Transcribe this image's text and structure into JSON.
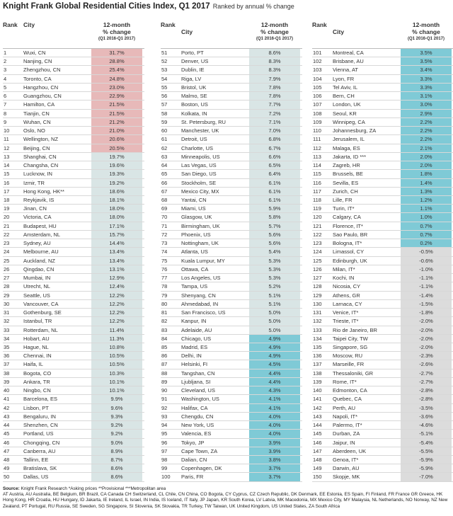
{
  "title": "Knight Frank Global Residential Cities Index, Q1 2017",
  "subtitle": "Ranked by annual % change",
  "headers": {
    "rank": "Rank",
    "city": "City",
    "change_line1": "12-month",
    "change_line2": "% change",
    "period": "(Q1 2016-Q1 2017)"
  },
  "colors": {
    "positive_high": "#e7b9b9",
    "positive_mid": "#d9e5e5",
    "positive_low": "#7fcad6",
    "negative": "#dcdcdc"
  },
  "chart_data": {
    "type": "table",
    "title": "Knight Frank Global Residential Cities Index, Q1 2017",
    "subtitle": "Ranked by annual % change",
    "columns": [
      "Rank",
      "City",
      "12-month % change (Q1 2016-Q1 2017)"
    ],
    "rows": [
      {
        "rank": 1,
        "city": "Wuxi, CN",
        "value": "31.7%",
        "tier": "high"
      },
      {
        "rank": 2,
        "city": "Nanjing, CN",
        "value": "28.8%",
        "tier": "high"
      },
      {
        "rank": 3,
        "city": "Zhengzhou, CN",
        "value": "25.4%",
        "tier": "high"
      },
      {
        "rank": 4,
        "city": "Toronto, CA",
        "value": "24.8%",
        "tier": "high"
      },
      {
        "rank": 5,
        "city": "Hangzhou, CN",
        "value": "23.0%",
        "tier": "high"
      },
      {
        "rank": 6,
        "city": "Guangzhou, CN",
        "value": "22.9%",
        "tier": "high"
      },
      {
        "rank": 7,
        "city": "Hamilton, CA",
        "value": "21.5%",
        "tier": "high"
      },
      {
        "rank": 8,
        "city": "Tianjin, CN",
        "value": "21.5%",
        "tier": "high"
      },
      {
        "rank": 9,
        "city": "Wuhan, CN",
        "value": "21.2%",
        "tier": "high"
      },
      {
        "rank": 10,
        "city": "Oslo, NO",
        "value": "21.0%",
        "tier": "high"
      },
      {
        "rank": 11,
        "city": "Wellington, NZ",
        "value": "20.6%",
        "tier": "high"
      },
      {
        "rank": 12,
        "city": "Beijing, CN",
        "value": "20.5%",
        "tier": "high"
      },
      {
        "rank": 13,
        "city": "Shanghai, CN",
        "value": "19.7%",
        "tier": "mid"
      },
      {
        "rank": 14,
        "city": "Changsha, CN",
        "value": "19.6%",
        "tier": "mid"
      },
      {
        "rank": 15,
        "city": "Lucknow, IN",
        "value": "19.3%",
        "tier": "mid"
      },
      {
        "rank": 16,
        "city": "Izmir, TR",
        "value": "19.2%",
        "tier": "mid"
      },
      {
        "rank": 17,
        "city": "Hong Kong, HK**",
        "value": "18.6%",
        "tier": "mid"
      },
      {
        "rank": 18,
        "city": "Reykjavik, IS",
        "value": "18.1%",
        "tier": "mid"
      },
      {
        "rank": 19,
        "city": "Jinan, CN",
        "value": "18.0%",
        "tier": "mid"
      },
      {
        "rank": 20,
        "city": "Victoria, CA",
        "value": "18.0%",
        "tier": "mid"
      },
      {
        "rank": 21,
        "city": "Budapest, HU",
        "value": "17.1%",
        "tier": "mid"
      },
      {
        "rank": 22,
        "city": "Amsterdam, NL",
        "value": "15.7%",
        "tier": "mid"
      },
      {
        "rank": 23,
        "city": "Sydney, AU",
        "value": "14.4%",
        "tier": "mid"
      },
      {
        "rank": 24,
        "city": "Melbourne, AU",
        "value": "13.4%",
        "tier": "mid"
      },
      {
        "rank": 25,
        "city": "Auckland, NZ",
        "value": "13.4%",
        "tier": "mid"
      },
      {
        "rank": 26,
        "city": "Qingdao, CN",
        "value": "13.1%",
        "tier": "mid"
      },
      {
        "rank": 27,
        "city": "Mumbai, IN",
        "value": "12.9%",
        "tier": "mid"
      },
      {
        "rank": 28,
        "city": "Utrecht, NL",
        "value": "12.4%",
        "tier": "mid"
      },
      {
        "rank": 29,
        "city": "Seattle, US",
        "value": "12.2%",
        "tier": "mid"
      },
      {
        "rank": 30,
        "city": "Vancouver, CA",
        "value": "12.2%",
        "tier": "mid"
      },
      {
        "rank": 31,
        "city": "Gothenburg, SE",
        "value": "12.2%",
        "tier": "mid"
      },
      {
        "rank": 32,
        "city": "Istanbul, TR",
        "value": "12.2%",
        "tier": "mid"
      },
      {
        "rank": 33,
        "city": "Rotterdam, NL",
        "value": "11.4%",
        "tier": "mid"
      },
      {
        "rank": 34,
        "city": "Hobart, AU",
        "value": "11.3%",
        "tier": "mid"
      },
      {
        "rank": 35,
        "city": "Hague, NL",
        "value": "10.8%",
        "tier": "mid"
      },
      {
        "rank": 36,
        "city": "Chennai, IN",
        "value": "10.5%",
        "tier": "mid"
      },
      {
        "rank": 37,
        "city": "Haifa, IL",
        "value": "10.5%",
        "tier": "mid"
      },
      {
        "rank": 38,
        "city": "Bogota, CO",
        "value": "10.3%",
        "tier": "mid"
      },
      {
        "rank": 39,
        "city": "Ankara, TR",
        "value": "10.1%",
        "tier": "mid"
      },
      {
        "rank": 40,
        "city": "Ningbo, CN",
        "value": "10.1%",
        "tier": "mid"
      },
      {
        "rank": 41,
        "city": "Barcelona, ES",
        "value": "9.9%",
        "tier": "mid"
      },
      {
        "rank": 42,
        "city": "Lisbon, PT",
        "value": "9.6%",
        "tier": "mid"
      },
      {
        "rank": 43,
        "city": "Bengaluru, IN",
        "value": "9.3%",
        "tier": "mid"
      },
      {
        "rank": 44,
        "city": "Shenzhen, CN",
        "value": "9.2%",
        "tier": "mid"
      },
      {
        "rank": 45,
        "city": "Portland, US",
        "value": "9.2%",
        "tier": "mid"
      },
      {
        "rank": 46,
        "city": "Chongqing, CN",
        "value": "9.0%",
        "tier": "mid"
      },
      {
        "rank": 47,
        "city": "Canberra, AU",
        "value": "8.9%",
        "tier": "mid"
      },
      {
        "rank": 48,
        "city": "Tallinn, EE",
        "value": "8.7%",
        "tier": "mid"
      },
      {
        "rank": 49,
        "city": "Bratislava, SK",
        "value": "8.6%",
        "tier": "mid"
      },
      {
        "rank": 50,
        "city": "Dallas, US",
        "value": "8.6%",
        "tier": "mid"
      },
      {
        "rank": 51,
        "city": "Porto, PT",
        "value": "8.6%",
        "tier": "mid"
      },
      {
        "rank": 52,
        "city": "Denver, US",
        "value": "8.3%",
        "tier": "mid"
      },
      {
        "rank": 53,
        "city": "Dublin, IE",
        "value": "8.3%",
        "tier": "mid"
      },
      {
        "rank": 54,
        "city": "Riga, LV",
        "value": "7.9%",
        "tier": "mid"
      },
      {
        "rank": 55,
        "city": "Bristol, UK",
        "value": "7.8%",
        "tier": "mid"
      },
      {
        "rank": 56,
        "city": "Malmo, SE",
        "value": "7.8%",
        "tier": "mid"
      },
      {
        "rank": 57,
        "city": "Boston, US",
        "value": "7.7%",
        "tier": "mid"
      },
      {
        "rank": 58,
        "city": "Kolkata, IN",
        "value": "7.2%",
        "tier": "mid"
      },
      {
        "rank": 59,
        "city": "St. Petersburg, RU",
        "value": "7.1%",
        "tier": "mid"
      },
      {
        "rank": 60,
        "city": "Manchester, UK",
        "value": "7.0%",
        "tier": "mid"
      },
      {
        "rank": 61,
        "city": "Detroit, US",
        "value": "6.8%",
        "tier": "mid"
      },
      {
        "rank": 62,
        "city": "Charlotte, US",
        "value": "6.7%",
        "tier": "mid"
      },
      {
        "rank": 63,
        "city": "Minneapolis, US",
        "value": "6.6%",
        "tier": "mid"
      },
      {
        "rank": 64,
        "city": "Las Vegas, US",
        "value": "6.5%",
        "tier": "mid"
      },
      {
        "rank": 65,
        "city": "San Diego, US",
        "value": "6.4%",
        "tier": "mid"
      },
      {
        "rank": 66,
        "city": "Stockholm, SE",
        "value": "6.1%",
        "tier": "mid"
      },
      {
        "rank": 67,
        "city": "Mexico City, MX",
        "value": "6.1%",
        "tier": "mid"
      },
      {
        "rank": 68,
        "city": "Yantai, CN",
        "value": "6.1%",
        "tier": "mid"
      },
      {
        "rank": 69,
        "city": "Miami, US",
        "value": "5.9%",
        "tier": "mid"
      },
      {
        "rank": 70,
        "city": "Glasgow, UK",
        "value": "5.8%",
        "tier": "mid"
      },
      {
        "rank": 71,
        "city": "Birmingham, UK",
        "value": "5.7%",
        "tier": "mid"
      },
      {
        "rank": 72,
        "city": "Phoenix, US",
        "value": "5.6%",
        "tier": "mid"
      },
      {
        "rank": 73,
        "city": "Nottingham, UK",
        "value": "5.6%",
        "tier": "mid"
      },
      {
        "rank": 74,
        "city": "Atlanta, US",
        "value": "5.4%",
        "tier": "mid"
      },
      {
        "rank": 75,
        "city": "Kuala Lumpur, MY",
        "value": "5.3%",
        "tier": "mid"
      },
      {
        "rank": 76,
        "city": "Ottawa, CA",
        "value": "5.3%",
        "tier": "mid"
      },
      {
        "rank": 77,
        "city": "Los Angeles, US",
        "value": "5.3%",
        "tier": "mid"
      },
      {
        "rank": 78,
        "city": "Tampa, US",
        "value": "5.2%",
        "tier": "mid"
      },
      {
        "rank": 79,
        "city": "Shenyang, CN",
        "value": "5.1%",
        "tier": "mid"
      },
      {
        "rank": 80,
        "city": "Ahmedabad, IN",
        "value": "5.1%",
        "tier": "mid"
      },
      {
        "rank": 81,
        "city": "San Francisco, US",
        "value": "5.0%",
        "tier": "mid"
      },
      {
        "rank": 82,
        "city": "Kanpur, IN",
        "value": "5.0%",
        "tier": "mid"
      },
      {
        "rank": 83,
        "city": "Adelaide, AU",
        "value": "5.0%",
        "tier": "mid"
      },
      {
        "rank": 84,
        "city": "Chicago, US",
        "value": "4.9%",
        "tier": "low"
      },
      {
        "rank": 85,
        "city": "Madrid, ES",
        "value": "4.9%",
        "tier": "low"
      },
      {
        "rank": 86,
        "city": "Delhi, IN",
        "value": "4.9%",
        "tier": "low"
      },
      {
        "rank": 87,
        "city": "Helsinki, FI",
        "value": "4.5%",
        "tier": "low"
      },
      {
        "rank": 88,
        "city": "Tangshan, CN",
        "value": "4.4%",
        "tier": "low"
      },
      {
        "rank": 89,
        "city": "Ljubljana, SI",
        "value": "4.4%",
        "tier": "low"
      },
      {
        "rank": 90,
        "city": "Cleveland, US",
        "value": "4.3%",
        "tier": "low"
      },
      {
        "rank": 91,
        "city": "Washington, US",
        "value": "4.1%",
        "tier": "low"
      },
      {
        "rank": 92,
        "city": "Halifax, CA",
        "value": "4.1%",
        "tier": "low"
      },
      {
        "rank": 93,
        "city": "Chengdu, CN",
        "value": "4.0%",
        "tier": "low"
      },
      {
        "rank": 94,
        "city": "New York, US",
        "value": "4.0%",
        "tier": "low"
      },
      {
        "rank": 95,
        "city": "Valencia, ES",
        "value": "4.0%",
        "tier": "low"
      },
      {
        "rank": 96,
        "city": "Tokyo, JP",
        "value": "3.9%",
        "tier": "low"
      },
      {
        "rank": 97,
        "city": "Cape Town, ZA",
        "value": "3.9%",
        "tier": "low"
      },
      {
        "rank": 98,
        "city": "Dalian, CN",
        "value": "3.8%",
        "tier": "low"
      },
      {
        "rank": 99,
        "city": "Copenhagen, DK",
        "value": "3.7%",
        "tier": "low"
      },
      {
        "rank": 100,
        "city": "Paris, FR",
        "value": "3.7%",
        "tier": "low"
      },
      {
        "rank": 101,
        "city": "Montreal, CA",
        "value": "3.5%",
        "tier": "low"
      },
      {
        "rank": 102,
        "city": "Brisbane, AU",
        "value": "3.5%",
        "tier": "low"
      },
      {
        "rank": 103,
        "city": "Vienna, AT",
        "value": "3.4%",
        "tier": "low"
      },
      {
        "rank": 104,
        "city": "Lyon, FR",
        "value": "3.3%",
        "tier": "low"
      },
      {
        "rank": 105,
        "city": "Tel Aviv, IL",
        "value": "3.3%",
        "tier": "low"
      },
      {
        "rank": 106,
        "city": "Bern, CH",
        "value": "3.1%",
        "tier": "low"
      },
      {
        "rank": 107,
        "city": "London, UK",
        "value": "3.0%",
        "tier": "low"
      },
      {
        "rank": 108,
        "city": "Seoul, KR",
        "value": "2.9%",
        "tier": "low"
      },
      {
        "rank": 109,
        "city": "Winnipeg, CA",
        "value": "2.2%",
        "tier": "low"
      },
      {
        "rank": 110,
        "city": "Johannesburg, ZA",
        "value": "2.2%",
        "tier": "low"
      },
      {
        "rank": 111,
        "city": "Jerusalem, IL",
        "value": "2.2%",
        "tier": "low"
      },
      {
        "rank": 112,
        "city": "Malaga, ES",
        "value": "2.1%",
        "tier": "low"
      },
      {
        "rank": 113,
        "city": "Jakarta, ID ***",
        "value": "2.0%",
        "tier": "low"
      },
      {
        "rank": 114,
        "city": "Zagreb, HR",
        "value": "2.0%",
        "tier": "low"
      },
      {
        "rank": 115,
        "city": "Brussels, BE",
        "value": "1.8%",
        "tier": "low"
      },
      {
        "rank": 116,
        "city": "Sevilla, ES",
        "value": "1.4%",
        "tier": "low"
      },
      {
        "rank": 117,
        "city": "Zurich, CH",
        "value": "1.3%",
        "tier": "low"
      },
      {
        "rank": 118,
        "city": "Lille, FR",
        "value": "1.2%",
        "tier": "low"
      },
      {
        "rank": 119,
        "city": "Turin, IT*",
        "value": "1.1%",
        "tier": "low"
      },
      {
        "rank": 120,
        "city": "Calgary, CA",
        "value": "1.0%",
        "tier": "low"
      },
      {
        "rank": 121,
        "city": "Florence, IT*",
        "value": "0.7%",
        "tier": "low"
      },
      {
        "rank": 122,
        "city": "Sao Paulo, BR",
        "value": "0.7%",
        "tier": "low"
      },
      {
        "rank": 123,
        "city": "Bologna, IT*",
        "value": "0.2%",
        "tier": "low"
      },
      {
        "rank": 124,
        "city": "Limassol, CY",
        "value": "-0.5%",
        "tier": "neg"
      },
      {
        "rank": 125,
        "city": "Edinburgh, UK",
        "value": "-0.6%",
        "tier": "neg"
      },
      {
        "rank": 126,
        "city": "Milan, IT*",
        "value": "-1.0%",
        "tier": "neg"
      },
      {
        "rank": 127,
        "city": "Kochi, IN",
        "value": "-1.1%",
        "tier": "neg"
      },
      {
        "rank": 128,
        "city": "Nicosia, CY",
        "value": "-1.1%",
        "tier": "neg"
      },
      {
        "rank": 129,
        "city": "Athens, GR",
        "value": "-1.4%",
        "tier": "neg"
      },
      {
        "rank": 130,
        "city": "Larnaca, CY",
        "value": "-1.5%",
        "tier": "neg"
      },
      {
        "rank": 131,
        "city": "Venice, IT*",
        "value": "-1.8%",
        "tier": "neg"
      },
      {
        "rank": 132,
        "city": "Trieste, IT*",
        "value": "-2.0%",
        "tier": "neg"
      },
      {
        "rank": 133,
        "city": "Rio de Janeiro, BR",
        "value": "-2.0%",
        "tier": "neg"
      },
      {
        "rank": 134,
        "city": "Taipei City, TW",
        "value": "-2.0%",
        "tier": "neg"
      },
      {
        "rank": 135,
        "city": "Singapore, SG",
        "value": "-2.0%",
        "tier": "neg"
      },
      {
        "rank": 136,
        "city": "Moscow, RU",
        "value": "-2.3%",
        "tier": "neg"
      },
      {
        "rank": 137,
        "city": "Marseille, FR",
        "value": "-2.6%",
        "tier": "neg"
      },
      {
        "rank": 138,
        "city": "Thessaloniki, GR",
        "value": "-2.7%",
        "tier": "neg"
      },
      {
        "rank": 139,
        "city": "Rome, IT*",
        "value": "-2.7%",
        "tier": "neg"
      },
      {
        "rank": 140,
        "city": "Edmonton, CA",
        "value": "-2.8%",
        "tier": "neg"
      },
      {
        "rank": 141,
        "city": "Quebec, CA",
        "value": "-2.8%",
        "tier": "neg"
      },
      {
        "rank": 142,
        "city": "Perth, AU",
        "value": "-3.5%",
        "tier": "neg"
      },
      {
        "rank": 143,
        "city": "Napoli, IT*",
        "value": "-3.6%",
        "tier": "neg"
      },
      {
        "rank": 144,
        "city": "Palermo, IT*",
        "value": "-4.6%",
        "tier": "neg"
      },
      {
        "rank": 145,
        "city": "Durban, ZA",
        "value": "-5.1%",
        "tier": "neg"
      },
      {
        "rank": 146,
        "city": "Jaipur, IN",
        "value": "-5.4%",
        "tier": "neg"
      },
      {
        "rank": 147,
        "city": "Aberdeen, UK",
        "value": "-5.5%",
        "tier": "neg"
      },
      {
        "rank": 148,
        "city": "Genoa, IT*",
        "value": "-5.9%",
        "tier": "neg"
      },
      {
        "rank": 149,
        "city": "Darwin, AU",
        "value": "-5.9%",
        "tier": "neg"
      },
      {
        "rank": 150,
        "city": "Skopje, MK",
        "value": "-7.0%",
        "tier": "neg"
      }
    ]
  },
  "source": {
    "label": "Source:",
    "text": "Knight Frank Research *Asking prices **Provisional ***Metropolitan area",
    "country_codes": "AT Austria, AU Australia, BE Belgium, BR Brazil, CA Canada CH Switzerland, CL Chile, CN China, CO Bogota, CY Cyprus, CZ Czech Republic, DK Denmark, EE Estonia, ES Spain, FI Finland, FR France GR Greece, HK Hong Kong, HR Croatia, HU Hungary, ID Jakarta, IE Ireland, IL Israel, IN India, IS Iceland, IT Italy, JP Japan, KR South Korea, LV Latvia, MK Macedonia, MX Mexico City, MY Malaysia, NL Netherlands, NO Norway, NZ New Zealand, PT Portugal, RU Russia, SE Sweden, SG Singapore, SI Slovenia, SK Slovakia, TR Turkey, TW Taiwan, UK United Kingdom, US United States, ZA South Africa"
  }
}
